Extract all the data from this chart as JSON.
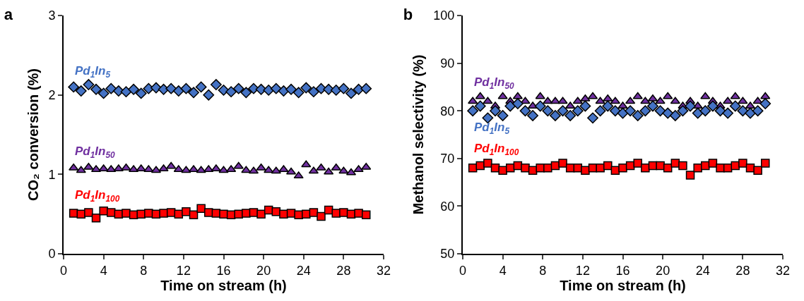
{
  "chart_data": [
    {
      "type": "scatter",
      "title": "a",
      "xlabel": "Time on stream (h)",
      "ylabel": "CO₂ conversion (%)",
      "x": [
        1,
        1.75,
        2.5,
        3.25,
        4,
        4.75,
        5.5,
        6.25,
        7,
        7.75,
        8.5,
        9.25,
        10,
        10.75,
        11.5,
        12.25,
        13,
        13.75,
        14.5,
        15.25,
        16,
        16.75,
        17.5,
        18.25,
        19,
        19.75,
        20.5,
        21.25,
        22,
        22.75,
        23.5,
        24.25,
        25,
        25.75,
        26.5,
        27.25,
        28,
        28.75,
        29.5,
        30.25
      ],
      "xlim": [
        0,
        32
      ],
      "xticks": [
        0,
        4,
        8,
        12,
        16,
        20,
        24,
        28,
        32
      ],
      "ylim": [
        0,
        3
      ],
      "yticks": [
        0,
        1,
        2,
        3
      ],
      "grid": false,
      "legend": false,
      "series": [
        {
          "name": "Pd$_{1}$In$_{5}$",
          "color": "#4472c4",
          "marker": "diamond",
          "values": [
            2.1,
            2.05,
            2.13,
            2.07,
            2.02,
            2.08,
            2.05,
            2.04,
            2.07,
            2.02,
            2.08,
            2.09,
            2.07,
            2.08,
            2.05,
            2.08,
            2.03,
            2.1,
            2.0,
            2.13,
            2.06,
            2.04,
            2.08,
            2.03,
            2.08,
            2.07,
            2.06,
            2.08,
            2.05,
            2.07,
            2.03,
            2.09,
            2.04,
            2.08,
            2.07,
            2.06,
            2.08,
            2.02,
            2.07,
            2.08
          ]
        },
        {
          "name": "Pd$_{1}$In$_{50}$",
          "color": "#7030a0",
          "marker": "triangle",
          "values": [
            1.08,
            1.05,
            1.09,
            1.06,
            1.07,
            1.06,
            1.07,
            1.08,
            1.06,
            1.07,
            1.06,
            1.05,
            1.07,
            1.1,
            1.06,
            1.05,
            1.06,
            1.05,
            1.06,
            1.07,
            1.05,
            1.06,
            1.1,
            1.05,
            1.04,
            1.08,
            1.05,
            1.04,
            1.06,
            1.03,
            0.98,
            1.12,
            1.04,
            1.08,
            1.03,
            1.08,
            1.04,
            1.02,
            1.06,
            1.09
          ]
        },
        {
          "name": "Pd$_{1}$In$_{100}$",
          "color": "#ff0000",
          "marker": "square",
          "values": [
            0.51,
            0.5,
            0.52,
            0.45,
            0.54,
            0.52,
            0.5,
            0.51,
            0.49,
            0.5,
            0.51,
            0.5,
            0.51,
            0.52,
            0.5,
            0.53,
            0.49,
            0.57,
            0.52,
            0.51,
            0.5,
            0.49,
            0.5,
            0.51,
            0.52,
            0.5,
            0.55,
            0.53,
            0.5,
            0.51,
            0.49,
            0.5,
            0.52,
            0.47,
            0.55,
            0.51,
            0.52,
            0.5,
            0.51,
            0.49
          ]
        }
      ]
    },
    {
      "type": "scatter",
      "title": "b",
      "xlabel": "Time on stream (h)",
      "ylabel": "Methanol selectivity (%)",
      "x": [
        1,
        1.75,
        2.5,
        3.25,
        4,
        4.75,
        5.5,
        6.25,
        7,
        7.75,
        8.5,
        9.25,
        10,
        10.75,
        11.5,
        12.25,
        13,
        13.75,
        14.5,
        15.25,
        16,
        16.75,
        17.5,
        18.25,
        19,
        19.75,
        20.5,
        21.25,
        22,
        22.75,
        23.5,
        24.25,
        25,
        25.75,
        26.5,
        27.25,
        28,
        28.75,
        29.5,
        30.25
      ],
      "xlim": [
        0,
        32
      ],
      "xticks": [
        0,
        4,
        8,
        12,
        16,
        20,
        24,
        28,
        32
      ],
      "ylim": [
        50,
        100
      ],
      "yticks": [
        50,
        60,
        70,
        80,
        90,
        100
      ],
      "grid": false,
      "legend": false,
      "series": [
        {
          "name": "Pd$_{1}$In$_{50}$",
          "color": "#7030a0",
          "marker": "triangle",
          "values": [
            82,
            83,
            82,
            81,
            83,
            82,
            83,
            82,
            81,
            83,
            82,
            82,
            82,
            81,
            82,
            82.5,
            83,
            82,
            82.5,
            82,
            81,
            82,
            83,
            82,
            82.5,
            82,
            83,
            82,
            81,
            82,
            81,
            83,
            82,
            81,
            82,
            83,
            82,
            81,
            82,
            83
          ]
        },
        {
          "name": "Pd$_{1}$In$_{5}$",
          "color": "#4472c4",
          "marker": "diamond",
          "values": [
            80,
            81,
            78.5,
            80,
            79,
            81,
            81.5,
            80,
            79,
            81,
            80,
            79,
            80,
            79,
            80,
            81,
            78.5,
            80,
            81,
            80,
            79.5,
            80,
            79,
            80,
            81,
            80,
            79.5,
            79,
            80,
            81,
            79.5,
            80,
            81,
            80,
            79.5,
            81,
            80,
            79.5,
            80,
            81.5
          ]
        },
        {
          "name": "Pd$_{1}$In$_{100}$",
          "color": "#ff0000",
          "marker": "square",
          "values": [
            68,
            68.5,
            69,
            68,
            67.5,
            68,
            68.5,
            68,
            67.5,
            68,
            68,
            68.5,
            69,
            68,
            68,
            67.5,
            68,
            68,
            68.5,
            67.5,
            68,
            68.5,
            69,
            68,
            68.5,
            68.5,
            68,
            69,
            68.5,
            66.5,
            68,
            68.5,
            69,
            68,
            68,
            68.5,
            69,
            68,
            67.5,
            69
          ]
        }
      ]
    }
  ]
}
